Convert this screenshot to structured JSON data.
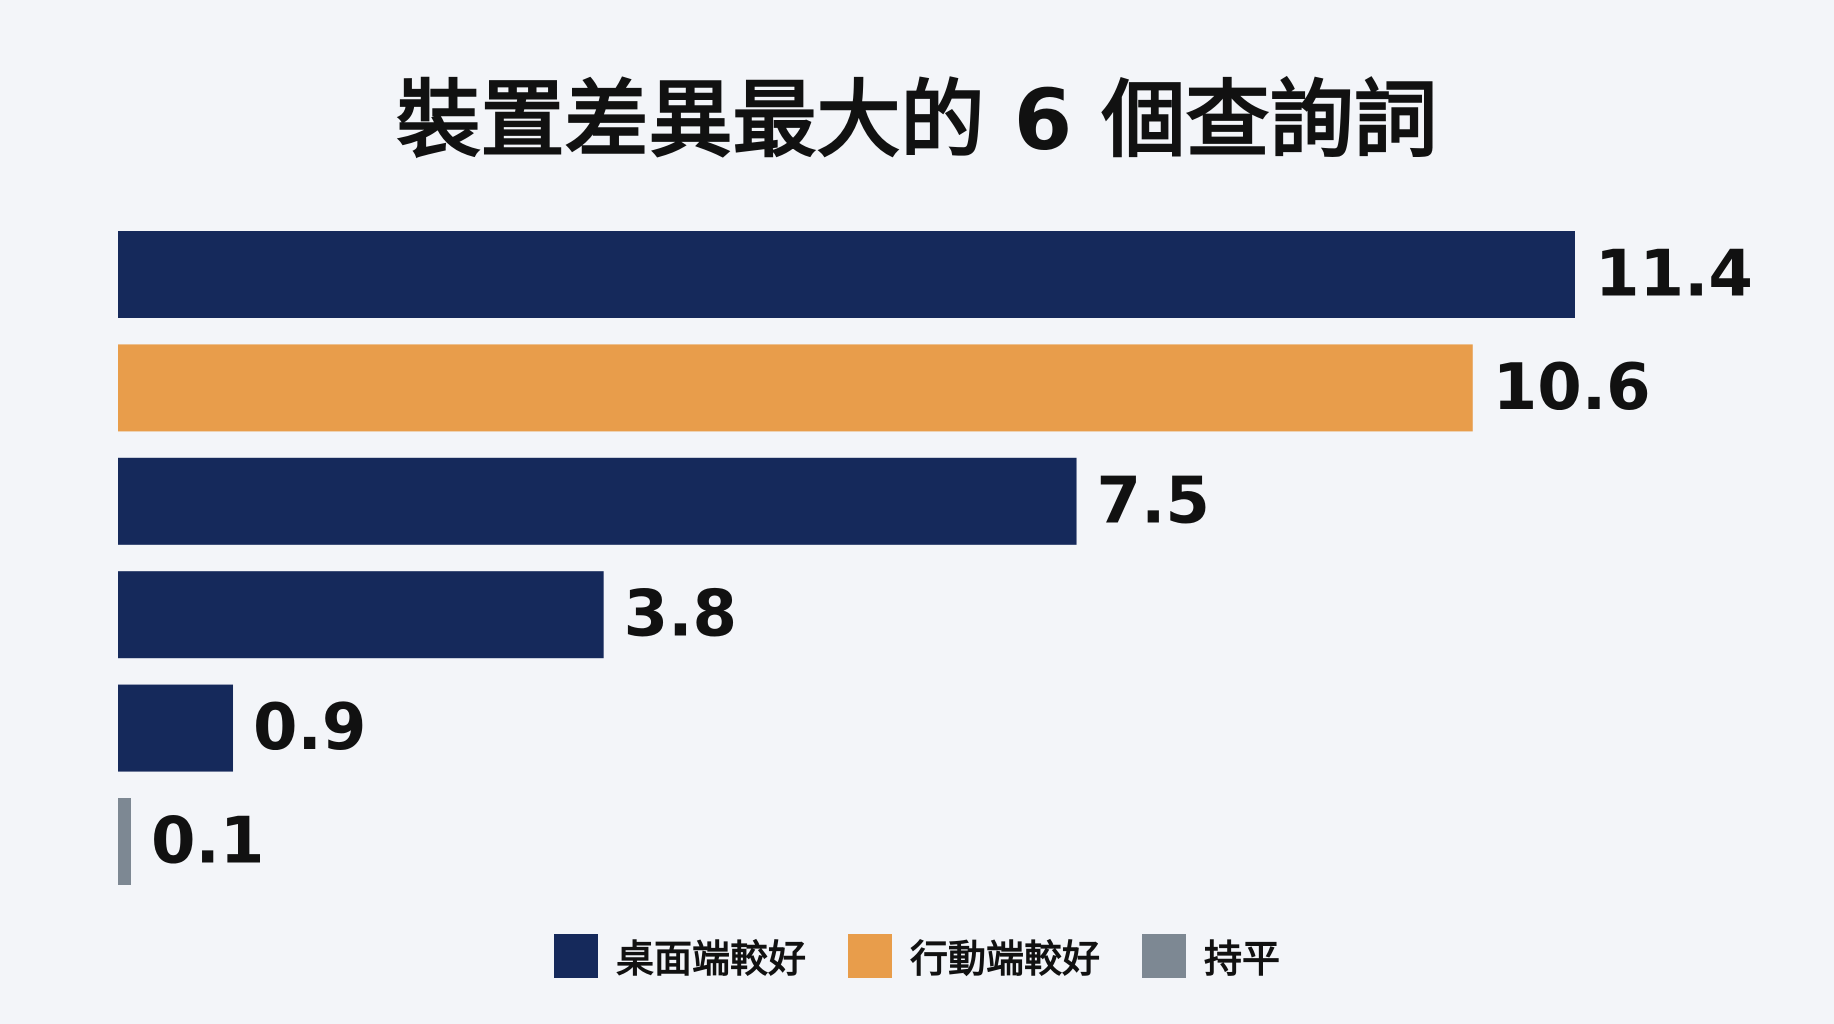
{
  "chart_data": {
    "type": "bar",
    "orientation": "horizontal",
    "title": "裝置差異最大的 6 個查詢詞",
    "xlabel": "",
    "ylabel": "",
    "xlim": [
      0,
      11.4
    ],
    "grid": false,
    "legend_position": "bottom",
    "values": [
      11.4,
      10.6,
      7.5,
      3.8,
      0.9,
      0.1
    ],
    "value_labels": [
      "11.4",
      "10.6",
      "7.5",
      "3.8",
      "0.9",
      "0.1"
    ],
    "bar_groups": [
      "desktop",
      "mobile",
      "desktop",
      "desktop",
      "desktop",
      "tie"
    ],
    "colors": {
      "desktop": "#15295b",
      "mobile": "#e89d4b",
      "tie": "#7d8893"
    },
    "legend": [
      {
        "key": "desktop",
        "label": "桌面端較好"
      },
      {
        "key": "mobile",
        "label": "行動端較好"
      },
      {
        "key": "tie",
        "label": "持平"
      }
    ]
  }
}
